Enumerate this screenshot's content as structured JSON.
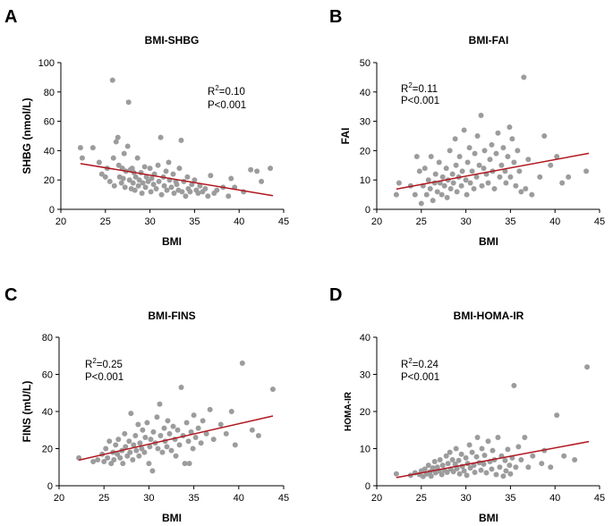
{
  "figure": {
    "panels": [
      "A",
      "B",
      "C",
      "D"
    ]
  },
  "colors": {
    "points": "#9c9c9c",
    "regression_line": "#b0171f",
    "axis": "#000000"
  },
  "chart_data": [
    {
      "type": "scatter",
      "letter": "A",
      "title": "BMI-SHBG",
      "xlabel": "BMI",
      "ylabel": "SHBG (nmol/L)",
      "xlim": [
        20,
        45
      ],
      "ylim": [
        0,
        100
      ],
      "xticks": [
        20,
        25,
        30,
        35,
        40,
        45
      ],
      "yticks": [
        0,
        20,
        40,
        60,
        80,
        100
      ],
      "r2_base": "R",
      "r2_exp": "2",
      "r2_value": "=0.10",
      "p_text": "P<0.001",
      "fit_line": {
        "x": [
          22.2,
          43.8
        ],
        "y": [
          31.2,
          9.3
        ]
      },
      "points": [
        [
          22.2,
          42
        ],
        [
          22.4,
          35
        ],
        [
          23.6,
          42
        ],
        [
          24.3,
          32
        ],
        [
          24.6,
          24
        ],
        [
          25,
          22
        ],
        [
          25.2,
          28
        ],
        [
          25.5,
          19
        ],
        [
          25.8,
          88
        ],
        [
          25.9,
          35
        ],
        [
          26,
          16
        ],
        [
          26.2,
          46
        ],
        [
          26.4,
          49
        ],
        [
          26.5,
          30
        ],
        [
          26.6,
          22
        ],
        [
          26.8,
          18
        ],
        [
          26.9,
          28
        ],
        [
          27,
          21
        ],
        [
          27.1,
          38
        ],
        [
          27.2,
          15
        ],
        [
          27.3,
          26
        ],
        [
          27.5,
          43
        ],
        [
          27.6,
          73
        ],
        [
          27.7,
          20
        ],
        [
          27.8,
          27
        ],
        [
          27.9,
          14
        ],
        [
          28,
          28
        ],
        [
          28.1,
          18
        ],
        [
          28.2,
          25
        ],
        [
          28.3,
          13
        ],
        [
          28.4,
          22
        ],
        [
          28.6,
          35
        ],
        [
          28.7,
          16
        ],
        [
          28.8,
          20
        ],
        [
          29,
          25
        ],
        [
          29.1,
          11
        ],
        [
          29.2,
          18
        ],
        [
          29.4,
          29
        ],
        [
          29.5,
          15
        ],
        [
          29.6,
          22
        ],
        [
          29.8,
          19
        ],
        [
          30,
          28
        ],
        [
          30.1,
          12
        ],
        [
          30.2,
          21
        ],
        [
          30.4,
          17
        ],
        [
          30.5,
          24
        ],
        [
          30.7,
          14
        ],
        [
          30.9,
          30
        ],
        [
          31,
          19
        ],
        [
          31.2,
          49
        ],
        [
          31.3,
          10
        ],
        [
          31.5,
          22
        ],
        [
          31.6,
          16
        ],
        [
          31.8,
          26
        ],
        [
          31.9,
          13
        ],
        [
          32.1,
          32
        ],
        [
          32.2,
          20
        ],
        [
          32.4,
          15
        ],
        [
          32.6,
          24
        ],
        [
          32.7,
          11
        ],
        [
          32.9,
          19
        ],
        [
          33,
          17
        ],
        [
          33.2,
          13
        ],
        [
          33.3,
          28
        ],
        [
          33.5,
          47
        ],
        [
          33.6,
          12
        ],
        [
          33.8,
          19
        ],
        [
          34,
          9
        ],
        [
          34.2,
          22
        ],
        [
          34.3,
          14
        ],
        [
          34.5,
          12
        ],
        [
          34.7,
          17
        ],
        [
          35,
          20
        ],
        [
          35.2,
          13
        ],
        [
          35.4,
          11
        ],
        [
          35.6,
          16
        ],
        [
          35.9,
          12
        ],
        [
          36.2,
          14
        ],
        [
          36.5,
          9
        ],
        [
          36.8,
          23
        ],
        [
          37.2,
          11
        ],
        [
          37.5,
          13
        ],
        [
          38.2,
          15
        ],
        [
          38.8,
          9
        ],
        [
          39.1,
          21
        ],
        [
          39.5,
          15
        ],
        [
          40.5,
          12
        ],
        [
          41.3,
          27
        ],
        [
          42,
          26
        ],
        [
          42.5,
          19
        ],
        [
          43.5,
          28
        ]
      ]
    },
    {
      "type": "scatter",
      "letter": "B",
      "title": "BMI-FAI",
      "xlabel": "BMI",
      "ylabel": "FAI",
      "xlim": [
        20,
        45
      ],
      "ylim": [
        0,
        50
      ],
      "xticks": [
        20,
        25,
        30,
        35,
        40,
        45
      ],
      "yticks": [
        0,
        10,
        20,
        30,
        40,
        50
      ],
      "r2_base": "R",
      "r2_exp": "2",
      "r2_value": "=0.11",
      "p_text": "P<0.001",
      "fit_line": {
        "x": [
          22.2,
          43.8
        ],
        "y": [
          6.9,
          19.1
        ]
      },
      "points": [
        [
          22.2,
          5
        ],
        [
          22.5,
          9
        ],
        [
          23.8,
          8
        ],
        [
          24.3,
          5
        ],
        [
          24.5,
          18
        ],
        [
          24.8,
          13
        ],
        [
          25,
          2
        ],
        [
          25.2,
          8
        ],
        [
          25.4,
          14
        ],
        [
          25.6,
          5
        ],
        [
          25.8,
          10
        ],
        [
          26,
          7
        ],
        [
          26.1,
          18
        ],
        [
          26.3,
          3
        ],
        [
          26.5,
          9
        ],
        [
          26.6,
          12
        ],
        [
          26.8,
          6
        ],
        [
          27,
          16
        ],
        [
          27.1,
          9
        ],
        [
          27.3,
          5
        ],
        [
          27.4,
          11
        ],
        [
          27.6,
          8
        ],
        [
          27.8,
          14
        ],
        [
          27.9,
          4
        ],
        [
          28,
          10
        ],
        [
          28.2,
          20
        ],
        [
          28.3,
          7
        ],
        [
          28.5,
          12
        ],
        [
          28.6,
          9
        ],
        [
          28.8,
          24
        ],
        [
          28.9,
          15
        ],
        [
          29,
          6
        ],
        [
          29.2,
          11
        ],
        [
          29.3,
          18
        ],
        [
          29.5,
          8
        ],
        [
          29.6,
          13
        ],
        [
          29.8,
          27
        ],
        [
          30,
          10
        ],
        [
          30.1,
          5
        ],
        [
          30.2,
          16
        ],
        [
          30.4,
          21
        ],
        [
          30.5,
          9
        ],
        [
          30.7,
          13
        ],
        [
          30.9,
          7
        ],
        [
          31,
          19
        ],
        [
          31.2,
          11
        ],
        [
          31.3,
          25
        ],
        [
          31.5,
          15
        ],
        [
          31.7,
          32
        ],
        [
          31.8,
          8
        ],
        [
          32,
          14
        ],
        [
          32.1,
          20
        ],
        [
          32.3,
          12
        ],
        [
          32.5,
          9
        ],
        [
          32.7,
          17
        ],
        [
          32.9,
          22
        ],
        [
          33,
          13
        ],
        [
          33.2,
          7
        ],
        [
          33.4,
          19
        ],
        [
          33.6,
          26
        ],
        [
          33.8,
          11
        ],
        [
          34,
          15
        ],
        [
          34.2,
          21
        ],
        [
          34.4,
          13
        ],
        [
          34.5,
          9
        ],
        [
          34.7,
          18
        ],
        [
          34.9,
          28
        ],
        [
          35,
          11
        ],
        [
          35.2,
          24
        ],
        [
          35.4,
          16
        ],
        [
          35.6,
          8
        ],
        [
          35.8,
          20
        ],
        [
          36,
          13
        ],
        [
          36.2,
          6
        ],
        [
          36.5,
          45
        ],
        [
          36.7,
          7
        ],
        [
          37,
          17
        ],
        [
          37.4,
          5
        ],
        [
          38.3,
          11
        ],
        [
          38.8,
          25
        ],
        [
          39.5,
          15
        ],
        [
          40.2,
          18
        ],
        [
          40.8,
          9
        ],
        [
          41.5,
          11
        ],
        [
          43.5,
          13
        ]
      ]
    },
    {
      "type": "scatter",
      "letter": "C",
      "title": "BMI-FINS",
      "xlabel": "BMI",
      "ylabel": "FINS (mU/L)",
      "xlim": [
        20,
        45
      ],
      "ylim": [
        0,
        80
      ],
      "xticks": [
        20,
        25,
        30,
        35,
        40,
        45
      ],
      "yticks": [
        0,
        20,
        40,
        60,
        80
      ],
      "r2_base": "R",
      "r2_exp": "2",
      "r2_value": "=0.25",
      "p_text": "P<0.001",
      "fit_line": {
        "x": [
          22.2,
          43.8
        ],
        "y": [
          13.8,
          37.6
        ]
      },
      "points": [
        [
          22.2,
          15
        ],
        [
          23.8,
          13
        ],
        [
          24.3,
          14
        ],
        [
          24.8,
          17
        ],
        [
          25,
          13
        ],
        [
          25.2,
          20
        ],
        [
          25.4,
          15
        ],
        [
          25.6,
          24
        ],
        [
          25.8,
          12
        ],
        [
          26,
          18
        ],
        [
          26.1,
          14
        ],
        [
          26.3,
          22
        ],
        [
          26.5,
          17
        ],
        [
          26.6,
          25
        ],
        [
          26.8,
          15
        ],
        [
          27,
          19
        ],
        [
          27.1,
          12
        ],
        [
          27.3,
          28
        ],
        [
          27.4,
          21
        ],
        [
          27.6,
          16
        ],
        [
          27.8,
          24
        ],
        [
          27.9,
          18
        ],
        [
          28,
          39
        ],
        [
          28.2,
          14
        ],
        [
          28.3,
          22
        ],
        [
          28.5,
          27
        ],
        [
          28.6,
          19
        ],
        [
          28.8,
          33
        ],
        [
          28.9,
          16
        ],
        [
          29,
          23
        ],
        [
          29.2,
          20
        ],
        [
          29.3,
          30
        ],
        [
          29.5,
          18
        ],
        [
          29.6,
          26
        ],
        [
          29.8,
          34
        ],
        [
          30,
          12
        ],
        [
          30.1,
          21
        ],
        [
          30.2,
          25
        ],
        [
          30.4,
          8
        ],
        [
          30.5,
          29
        ],
        [
          30.7,
          23
        ],
        [
          30.9,
          37
        ],
        [
          31,
          20
        ],
        [
          31.2,
          44
        ],
        [
          31.3,
          27
        ],
        [
          31.5,
          18
        ],
        [
          31.7,
          31
        ],
        [
          31.8,
          24
        ],
        [
          32,
          21
        ],
        [
          32.1,
          35
        ],
        [
          32.3,
          28
        ],
        [
          32.5,
          19
        ],
        [
          32.7,
          32
        ],
        [
          32.9,
          25
        ],
        [
          33,
          16
        ],
        [
          33.2,
          30
        ],
        [
          33.4,
          22
        ],
        [
          33.6,
          53
        ],
        [
          33.8,
          27
        ],
        [
          34,
          12
        ],
        [
          34.2,
          34
        ],
        [
          34.4,
          24
        ],
        [
          34.5,
          12
        ],
        [
          34.7,
          29
        ],
        [
          34.9,
          20
        ],
        [
          35,
          38
        ],
        [
          35.2,
          26
        ],
        [
          35.5,
          31
        ],
        [
          35.8,
          23
        ],
        [
          36,
          35
        ],
        [
          36.4,
          28
        ],
        [
          36.8,
          41
        ],
        [
          37.2,
          25
        ],
        [
          38,
          33
        ],
        [
          38.6,
          28
        ],
        [
          39.2,
          40
        ],
        [
          39.6,
          22
        ],
        [
          40.4,
          66
        ],
        [
          41.5,
          30
        ],
        [
          42.2,
          27
        ],
        [
          43.8,
          52
        ]
      ]
    },
    {
      "type": "scatter",
      "letter": "D",
      "title": "BMI-HOMA-IR",
      "xlabel": "BMI",
      "ylabel": "HOMA-IR",
      "xlim": [
        20,
        45
      ],
      "ylim": [
        0,
        40
      ],
      "xticks": [
        20,
        25,
        30,
        35,
        40,
        45
      ],
      "yticks": [
        0,
        10,
        20,
        30,
        40
      ],
      "r2_base": "R",
      "r2_exp": "2",
      "r2_value": "=0.24",
      "p_text": "P<0.001",
      "fit_line": {
        "x": [
          22.2,
          43.8
        ],
        "y": [
          2.2,
          11.9
        ]
      },
      "points": [
        [
          22.2,
          3.2
        ],
        [
          23.8,
          2.8
        ],
        [
          24.3,
          3.5
        ],
        [
          24.8,
          3
        ],
        [
          25,
          4
        ],
        [
          25.2,
          2.5
        ],
        [
          25.4,
          4.5
        ],
        [
          25.6,
          3.2
        ],
        [
          25.8,
          5.5
        ],
        [
          26,
          3.8
        ],
        [
          26.1,
          2.6
        ],
        [
          26.3,
          4.8
        ],
        [
          26.5,
          6.5
        ],
        [
          26.6,
          3.5
        ],
        [
          26.8,
          5
        ],
        [
          27,
          4
        ],
        [
          27.1,
          7
        ],
        [
          27.3,
          3
        ],
        [
          27.4,
          5.5
        ],
        [
          27.6,
          4.2
        ],
        [
          27.8,
          8
        ],
        [
          27.9,
          3.6
        ],
        [
          28,
          6
        ],
        [
          28.2,
          9
        ],
        [
          28.3,
          4.5
        ],
        [
          28.5,
          7
        ],
        [
          28.6,
          3.8
        ],
        [
          28.8,
          5.8
        ],
        [
          28.9,
          10
        ],
        [
          29,
          4.6
        ],
        [
          29.2,
          6.8
        ],
        [
          29.3,
          3.2
        ],
        [
          29.5,
          8.5
        ],
        [
          29.6,
          5.2
        ],
        [
          29.8,
          4
        ],
        [
          30,
          7.5
        ],
        [
          30.1,
          2.8
        ],
        [
          30.2,
          6
        ],
        [
          30.4,
          11
        ],
        [
          30.5,
          4.8
        ],
        [
          30.7,
          9
        ],
        [
          30.9,
          5.5
        ],
        [
          31,
          3.6
        ],
        [
          31.2,
          7.8
        ],
        [
          31.3,
          13
        ],
        [
          31.5,
          6.2
        ],
        [
          31.7,
          4.2
        ],
        [
          31.8,
          10
        ],
        [
          32,
          5.8
        ],
        [
          32.1,
          8.2
        ],
        [
          32.3,
          3.5
        ],
        [
          32.5,
          12
        ],
        [
          32.7,
          6.5
        ],
        [
          32.9,
          4.5
        ],
        [
          33,
          9.5
        ],
        [
          33.2,
          7
        ],
        [
          33.4,
          3
        ],
        [
          33.6,
          13
        ],
        [
          33.8,
          5
        ],
        [
          34,
          8
        ],
        [
          34.2,
          2.6
        ],
        [
          34.4,
          6.8
        ],
        [
          34.5,
          4
        ],
        [
          34.7,
          9.8
        ],
        [
          34.9,
          5.5
        ],
        [
          35,
          3.2
        ],
        [
          35.2,
          7.5
        ],
        [
          35.4,
          27
        ],
        [
          35.6,
          5
        ],
        [
          35.9,
          10.5
        ],
        [
          36.2,
          7
        ],
        [
          36.6,
          13
        ],
        [
          37,
          5
        ],
        [
          37.5,
          8
        ],
        [
          38.5,
          6
        ],
        [
          38.8,
          9.5
        ],
        [
          39.5,
          5
        ],
        [
          40.2,
          19
        ],
        [
          41,
          8
        ],
        [
          42.2,
          7
        ],
        [
          43.6,
          32
        ]
      ]
    }
  ]
}
